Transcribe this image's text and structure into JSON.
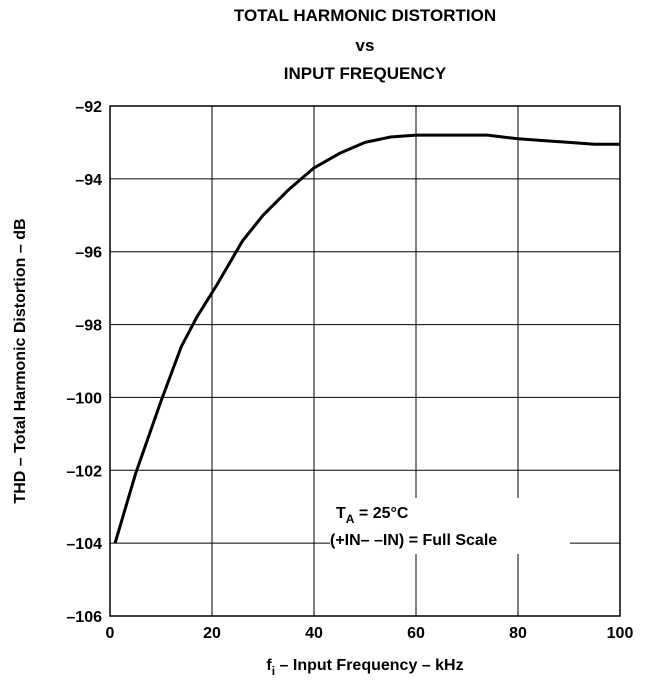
{
  "chart_data": {
    "type": "line",
    "title": [
      "TOTAL HARMONIC DISTORTION",
      "vs",
      "INPUT FREQUENCY"
    ],
    "xlabel": {
      "main": "f",
      "sub": "i",
      "rest": " – Input Frequency – kHz"
    },
    "ylabel": "THD – Total Harmonic Distortion – dB",
    "xlim": [
      0,
      100
    ],
    "ylim": [
      -106,
      -92
    ],
    "xticks": [
      0,
      20,
      40,
      60,
      80,
      100
    ],
    "xtick_labels": [
      "0",
      "20",
      "40",
      "60",
      "80",
      "100"
    ],
    "yticks": [
      -92,
      -94,
      -96,
      -98,
      -100,
      -102,
      -104,
      -106
    ],
    "ytick_labels": [
      "–92",
      "–94",
      "–96",
      "–98",
      "–100",
      "–102",
      "–104",
      "–106"
    ],
    "grid": true,
    "series": [
      {
        "x": [
          1,
          5,
          10,
          14,
          17,
          21,
          26,
          30,
          35,
          40,
          45,
          50,
          55,
          60,
          65,
          70,
          74,
          80,
          85,
          90,
          95,
          100
        ],
        "y": [
          -104,
          -102.1,
          -100.1,
          -98.6,
          -97.8,
          -96.9,
          -95.7,
          -95.0,
          -94.3,
          -93.7,
          -93.3,
          -93.0,
          -92.85,
          -92.8,
          -92.8,
          -92.8,
          -92.8,
          -92.9,
          -92.95,
          -93.0,
          -93.05,
          -93.05
        ]
      }
    ],
    "annotations": {
      "ta_main": "T",
      "ta_sub": "A",
      "ta_rest": " = 25°C",
      "condition": "(+IN– –IN) = Full Scale"
    }
  }
}
